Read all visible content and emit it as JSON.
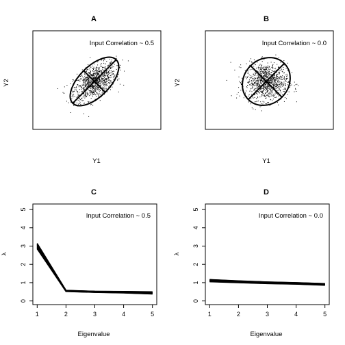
{
  "chart_data": [
    {
      "panel": "A",
      "type": "scatter",
      "title": "A",
      "xlabel": "Y1",
      "ylabel": "Y2",
      "annotation": "Input Correlation ~ 0.5",
      "axes_shown": false,
      "xlim": [
        -4,
        4
      ],
      "ylim": [
        -4,
        4
      ],
      "correlation": 0.5,
      "n_points": 1000,
      "ellipse": {
        "center": [
          0,
          0
        ],
        "rotation_deg": 45,
        "semi_axis_major": 2.9,
        "semi_axis_minor": 1.65
      },
      "color": "#000000"
    },
    {
      "panel": "B",
      "type": "scatter",
      "title": "B",
      "xlabel": "Y1",
      "ylabel": "Y2",
      "annotation": "Input Correlation ~ 0.0",
      "axes_shown": false,
      "xlim": [
        -4,
        4
      ],
      "ylim": [
        -4,
        4
      ],
      "correlation": 0.0,
      "n_points": 1000,
      "ellipse": {
        "center": [
          0,
          0
        ],
        "rotation_deg": 45,
        "semi_axis_major": 2.4,
        "semi_axis_minor": 2.4
      },
      "color": "#000000"
    },
    {
      "panel": "C",
      "type": "line",
      "title": "C",
      "xlabel": "Eigenvalue",
      "ylabel": "λ",
      "annotation": "Input Correlation ~ 0.5",
      "x": [
        1,
        2,
        3,
        4,
        5
      ],
      "xticks": [
        "1",
        "2",
        "3",
        "4",
        "5"
      ],
      "yticks": [
        "0",
        "1",
        "2",
        "3",
        "4",
        "5"
      ],
      "xlim": [
        0.85,
        5.15
      ],
      "ylim": [
        -0.2,
        5.3
      ],
      "series_low": [
        2.85,
        0.52,
        0.47,
        0.44,
        0.38
      ],
      "series_high": [
        3.15,
        0.58,
        0.53,
        0.52,
        0.5
      ],
      "color": "#000000"
    },
    {
      "panel": "D",
      "type": "line",
      "title": "D",
      "xlabel": "Eigenvalue",
      "ylabel": "λ",
      "annotation": "Input Correlation ~ 0.0",
      "x": [
        1,
        2,
        3,
        4,
        5
      ],
      "xticks": [
        "1",
        "2",
        "3",
        "4",
        "5"
      ],
      "yticks": [
        "0",
        "1",
        "2",
        "3",
        "4",
        "5"
      ],
      "xlim": [
        0.85,
        5.15
      ],
      "ylim": [
        -0.2,
        5.3
      ],
      "series_low": [
        1.05,
        1.0,
        0.95,
        0.92,
        0.86
      ],
      "series_high": [
        1.17,
        1.1,
        1.04,
        1.0,
        0.95
      ],
      "color": "#000000"
    }
  ]
}
